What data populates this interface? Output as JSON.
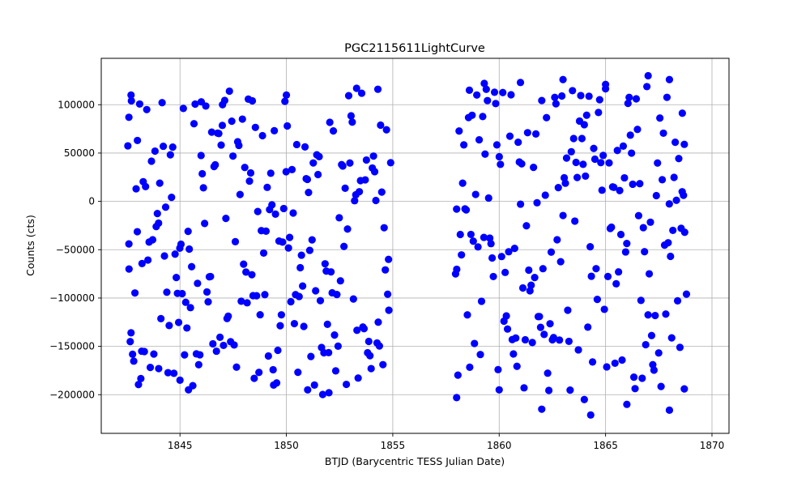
{
  "chart_data": {
    "type": "scatter",
    "title": "PGC2115611LightCurve",
    "xlabel": "BTJD (Barycentric TESS Julian Date)",
    "ylabel": "Counts (cts)",
    "xlim": [
      1841.3,
      1870.8
    ],
    "ylim": [
      -240000,
      148000
    ],
    "x_ticks": [
      1845,
      1850,
      1855,
      1860,
      1865,
      1870
    ],
    "x_tick_labels": [
      "1845",
      "1850",
      "1855",
      "1860",
      "1865",
      "1870"
    ],
    "y_ticks": [
      100000,
      50000,
      0,
      -50000,
      -100000,
      -150000,
      -200000
    ],
    "y_tick_labels": [
      "100000",
      "50000",
      "0",
      "−50000",
      "−100000",
      "−150000",
      "−200000"
    ],
    "grid": true,
    "marker_color": "#0000ff",
    "series": [
      {
        "segments": [
          {
            "x_start": 1842.55,
            "x_end": 1854.85,
            "dt": 0.0555
          },
          {
            "x_start": 1857.95,
            "x_end": 1868.75,
            "dt": 0.0555
          }
        ],
        "sample_points": [
          [
            1842.6,
            87000
          ],
          [
            1842.6,
            -44000
          ],
          [
            1842.7,
            110000
          ],
          [
            1842.7,
            -136000
          ],
          [
            1843.0,
            63000
          ],
          [
            1843.2,
            -155000
          ],
          [
            1844.0,
            -173000
          ],
          [
            1845.0,
            -185000
          ],
          [
            1845.4,
            -195000
          ],
          [
            1846.0,
            103000
          ],
          [
            1847.0,
            100000
          ],
          [
            1848.4,
            104000
          ],
          [
            1849.4,
            -190000
          ],
          [
            1850.0,
            110000
          ],
          [
            1851.0,
            -195000
          ],
          [
            1852.0,
            -198000
          ],
          [
            1853.3,
            117000
          ],
          [
            1854.3,
            116000
          ],
          [
            1854.8,
            -60000
          ],
          [
            1854.9,
            40000
          ],
          [
            1858.0,
            -203000
          ],
          [
            1858.0,
            -8000
          ],
          [
            1858.6,
            115000
          ],
          [
            1859.3,
            122000
          ],
          [
            1860.0,
            -195000
          ],
          [
            1861.0,
            123000
          ],
          [
            1862.0,
            -215000
          ],
          [
            1863.0,
            126000
          ],
          [
            1864.0,
            -205000
          ],
          [
            1864.3,
            -221000
          ],
          [
            1865.0,
            121000
          ],
          [
            1866.0,
            -210000
          ],
          [
            1867.0,
            130000
          ],
          [
            1868.0,
            -216000
          ],
          [
            1868.0,
            126000
          ],
          [
            1868.7,
            -194000
          ],
          [
            1868.8,
            -96000
          ],
          [
            1868.7,
            59000
          ],
          [
            1868.6,
            10000
          ]
        ]
      }
    ]
  }
}
